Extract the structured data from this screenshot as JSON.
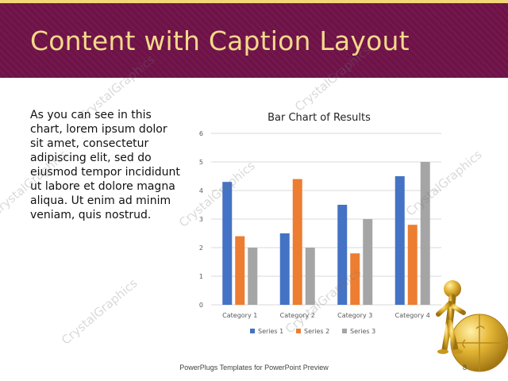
{
  "slide": {
    "title": "Content with Caption Layout",
    "caption": "As you can see in this chart, lorem ipsum dolor sit amet, consectetur adipiscing elit, sed do eiusmod tempor incididunt ut labore et dolore magna aliqua. Ut enim ad minim veniam, quis nostrud.",
    "footer": "PowerPlugs Templates for PowerPoint Preview",
    "page_number": "8",
    "watermark": "CrystalGraphics"
  },
  "colors": {
    "title_bar": "#6e1248",
    "title_text": "#f5d98a",
    "top_stripe": "#f2d778"
  },
  "chart_data": {
    "type": "bar",
    "title": "Bar Chart of Results",
    "categories": [
      "Category 1",
      "Category 2",
      "Category 3",
      "Category 4"
    ],
    "series": [
      {
        "name": "Series 1",
        "color": "#4472c4",
        "values": [
          4.3,
          2.5,
          3.5,
          4.5
        ]
      },
      {
        "name": "Series 2",
        "color": "#ed7d31",
        "values": [
          2.4,
          4.4,
          1.8,
          2.8
        ]
      },
      {
        "name": "Series 3",
        "color": "#a5a5a5",
        "values": [
          2,
          2,
          3,
          5
        ]
      }
    ],
    "ylim": [
      0,
      6
    ],
    "yticks": [
      "0",
      "1",
      "2",
      "3",
      "4",
      "5",
      "6"
    ],
    "grid": true,
    "legend": "bottom"
  }
}
